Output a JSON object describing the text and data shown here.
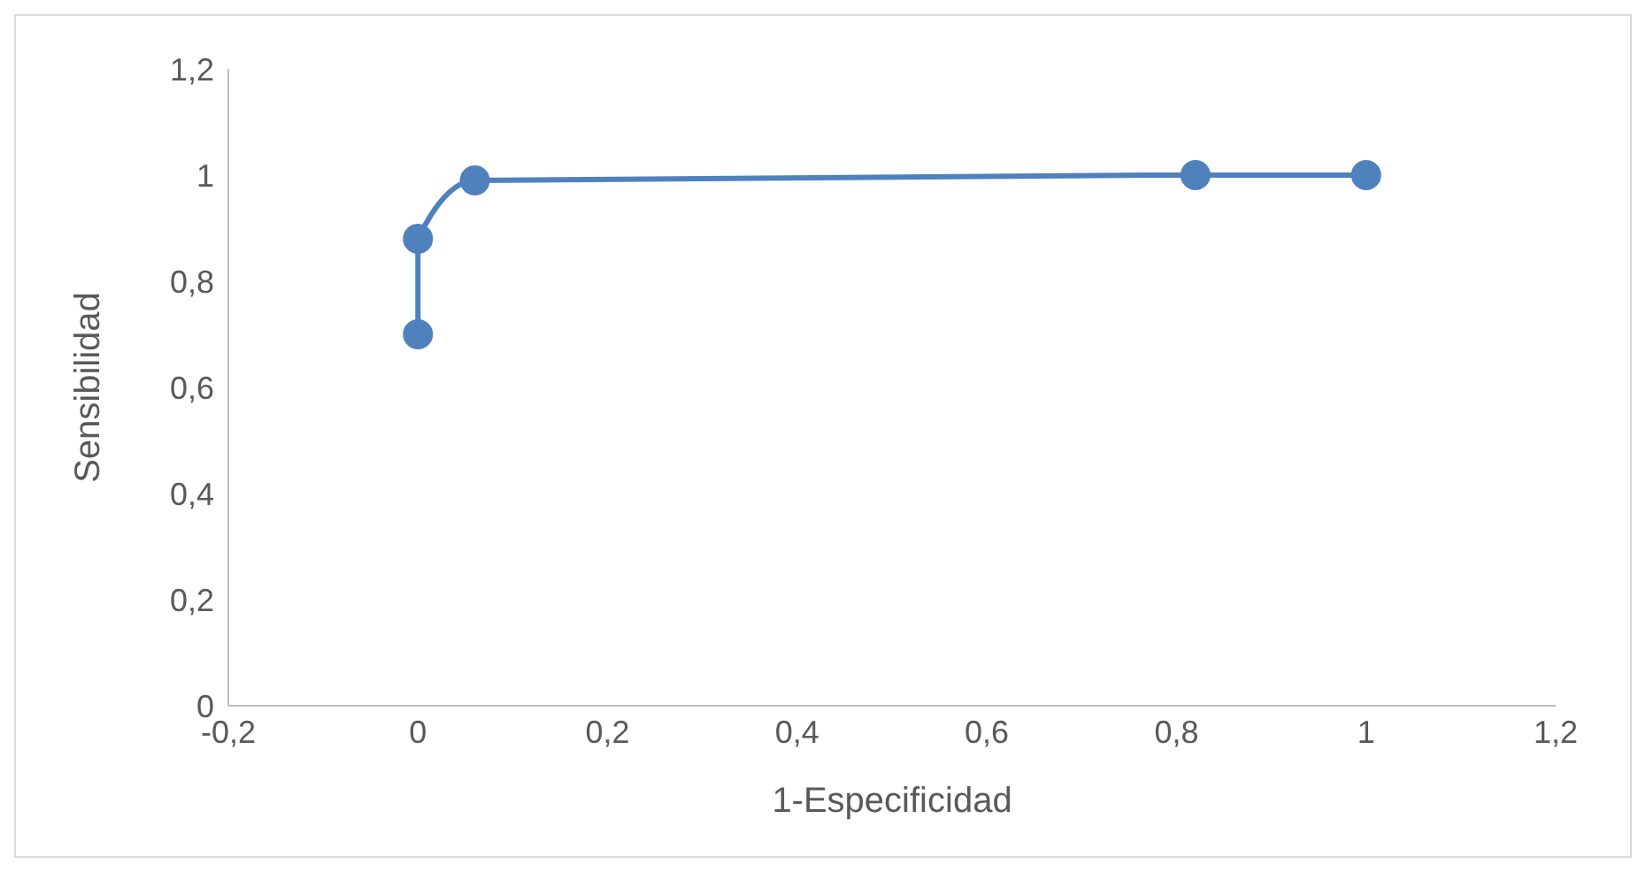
{
  "chart_data": {
    "type": "line",
    "xlabel": "1-Especificidad",
    "ylabel": "Sensibilidad",
    "x": [
      0,
      0,
      0.06,
      0.82,
      1
    ],
    "series": [
      {
        "color": "#4f81bd",
        "values": [
          0.7,
          0.88,
          0.99,
          1,
          1
        ]
      }
    ],
    "xlim": [
      -0.2,
      1.2
    ],
    "xticks": [
      {
        "value": -0.2,
        "label": "-0,2"
      },
      0,
      {
        "value": 0.2,
        "label": "0,2"
      },
      {
        "value": 0.4,
        "label": "0,4"
      },
      {
        "value": 0.6,
        "label": "0,6"
      },
      {
        "value": 0.8,
        "label": "0,8"
      },
      1,
      {
        "value": 1.2,
        "label": "1,2"
      }
    ],
    "ylim": [
      0,
      1.2
    ],
    "yticks": [
      0,
      {
        "value": 0.2,
        "label": "0,2"
      },
      {
        "value": 0.4,
        "label": "0,4"
      },
      {
        "value": 0.6,
        "label": "0,6"
      },
      {
        "value": 0.8,
        "label": "0,8"
      },
      1,
      {
        "value": 1.2,
        "label": "1,2"
      }
    ],
    "grid": false,
    "legend": false,
    "marker": "circle",
    "line_style": "solid"
  }
}
